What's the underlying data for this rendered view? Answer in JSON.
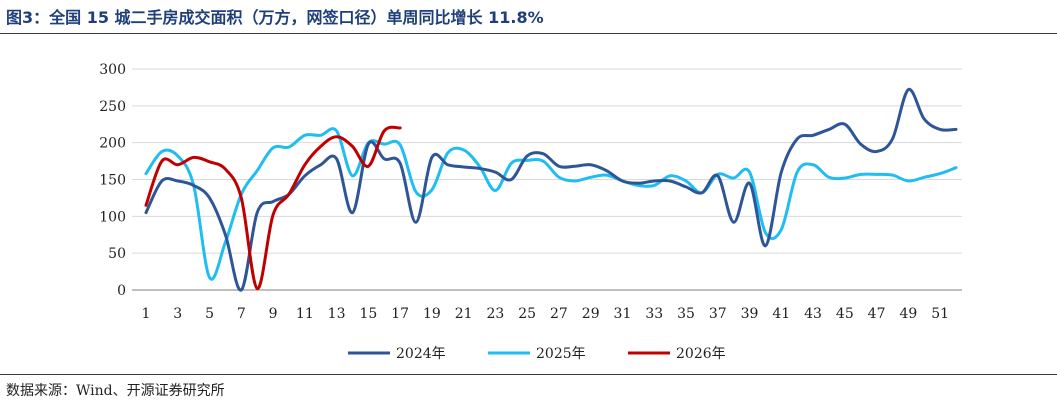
{
  "figure": {
    "title": "图3：全国 15 城二手房成交面积（万方，网签口径）单周同比增长 11.8%",
    "source": "数据来源：Wind、开源证券研究所"
  },
  "colors": {
    "s2024": "#2e5597",
    "s2025": "#1fbdf2",
    "s2026": "#c00000",
    "grid": "#d9d9d9",
    "axis": "#7f7f7f",
    "title": "#1f3f7a"
  },
  "chart_data": {
    "type": "line",
    "xlim": [
      1,
      52
    ],
    "ylim": [
      0,
      300
    ],
    "y_ticks": [
      0,
      50,
      100,
      150,
      200,
      250,
      300
    ],
    "x_ticks": [
      1,
      3,
      5,
      7,
      9,
      11,
      13,
      15,
      17,
      19,
      21,
      23,
      25,
      27,
      29,
      31,
      33,
      35,
      37,
      39,
      41,
      43,
      45,
      47,
      49,
      51
    ],
    "grid": "horizontal",
    "legend_position": "bottom",
    "series": [
      {
        "name": "2024年",
        "color_key": "s2024",
        "x": [
          1,
          2,
          3,
          4,
          5,
          6,
          7,
          8,
          9,
          10,
          11,
          12,
          13,
          14,
          15,
          16,
          17,
          18,
          19,
          20,
          21,
          22,
          23,
          24,
          25,
          26,
          27,
          28,
          29,
          30,
          31,
          32,
          33,
          34,
          35,
          36,
          37,
          38,
          39,
          40,
          41,
          42,
          43,
          44,
          45,
          46,
          47,
          48,
          49,
          50,
          51,
          52
        ],
        "values": [
          105,
          148,
          148,
          142,
          125,
          75,
          0,
          105,
          120,
          130,
          155,
          170,
          178,
          105,
          198,
          178,
          172,
          92,
          180,
          170,
          167,
          165,
          160,
          150,
          182,
          185,
          168,
          168,
          170,
          162,
          148,
          145,
          148,
          148,
          140,
          132,
          155,
          92,
          145,
          60,
          160,
          205,
          210,
          218,
          225,
          198,
          188,
          205,
          272,
          232,
          218,
          218
        ]
      },
      {
        "name": "2025年",
        "color_key": "s2025",
        "x": [
          1,
          2,
          3,
          4,
          5,
          6,
          7,
          8,
          9,
          10,
          11,
          12,
          13,
          14,
          15,
          16,
          17,
          18,
          19,
          20,
          21,
          22,
          23,
          24,
          25,
          26,
          27,
          28,
          29,
          30,
          31,
          32,
          33,
          34,
          35,
          36,
          37,
          38,
          39,
          40,
          41,
          42,
          43,
          44,
          45,
          46,
          47,
          48,
          49,
          50,
          51,
          52
        ],
        "values": [
          158,
          188,
          182,
          142,
          17,
          65,
          130,
          162,
          193,
          194,
          210,
          210,
          216,
          155,
          200,
          198,
          197,
          133,
          136,
          186,
          190,
          168,
          135,
          172,
          176,
          175,
          153,
          148,
          153,
          156,
          148,
          142,
          142,
          155,
          148,
          132,
          157,
          152,
          160,
          78,
          82,
          160,
          170,
          153,
          152,
          157,
          157,
          156,
          148,
          153,
          158,
          166
        ]
      },
      {
        "name": "2026年",
        "color_key": "s2026",
        "x": [
          1,
          2,
          3,
          4,
          5,
          6,
          7,
          8,
          9,
          10,
          11,
          12,
          13,
          14,
          15,
          16,
          17
        ],
        "values": [
          115,
          175,
          170,
          180,
          174,
          164,
          125,
          2,
          102,
          130,
          170,
          195,
          208,
          195,
          168,
          216,
          220
        ]
      }
    ]
  }
}
